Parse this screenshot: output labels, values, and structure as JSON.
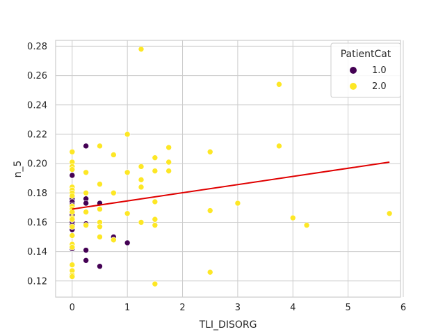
{
  "chart_data": {
    "type": "scatter",
    "title": "",
    "xlabel": "TLI_DISORG",
    "ylabel": "n_5",
    "xlim": [
      -0.3,
      5.95
    ],
    "ylim": [
      0.109,
      0.284
    ],
    "xticks": [
      0,
      1,
      2,
      3,
      4,
      5,
      6
    ],
    "yticks": [
      0.12,
      0.14,
      0.16,
      0.18,
      0.2,
      0.22,
      0.24,
      0.26,
      0.28
    ],
    "grid": true,
    "legend": {
      "title": "PatientCat",
      "position": "top-right"
    },
    "series": [
      {
        "name": "1.0",
        "color": "#440154",
        "points": [
          [
            0,
            0.192
          ],
          [
            0,
            0.176
          ],
          [
            0,
            0.174
          ],
          [
            0,
            0.172
          ],
          [
            0,
            0.168
          ],
          [
            0,
            0.165
          ],
          [
            0,
            0.16
          ],
          [
            0,
            0.158
          ],
          [
            0,
            0.155
          ],
          [
            0,
            0.142
          ],
          [
            0.25,
            0.212
          ],
          [
            0.25,
            0.176
          ],
          [
            0.25,
            0.173
          ],
          [
            0.25,
            0.159
          ],
          [
            0.25,
            0.141
          ],
          [
            0.25,
            0.134
          ],
          [
            0.5,
            0.173
          ],
          [
            0.5,
            0.13
          ],
          [
            0.75,
            0.15
          ],
          [
            1.0,
            0.146
          ]
        ]
      },
      {
        "name": "2.0",
        "color": "#fde725",
        "points": [
          [
            0,
            0.208
          ],
          [
            0,
            0.201
          ],
          [
            0,
            0.198
          ],
          [
            0,
            0.196
          ],
          [
            0,
            0.184
          ],
          [
            0,
            0.182
          ],
          [
            0,
            0.18
          ],
          [
            0,
            0.178
          ],
          [
            0,
            0.171
          ],
          [
            0,
            0.169
          ],
          [
            0,
            0.167
          ],
          [
            0,
            0.163
          ],
          [
            0,
            0.162
          ],
          [
            0,
            0.157
          ],
          [
            0,
            0.151
          ],
          [
            0,
            0.145
          ],
          [
            0,
            0.143
          ],
          [
            0,
            0.131
          ],
          [
            0,
            0.127
          ],
          [
            0,
            0.124
          ],
          [
            0,
            0.123
          ],
          [
            0.25,
            0.194
          ],
          [
            0.25,
            0.18
          ],
          [
            0.25,
            0.167
          ],
          [
            0.25,
            0.158
          ],
          [
            0.5,
            0.212
          ],
          [
            0.5,
            0.186
          ],
          [
            0.5,
            0.169
          ],
          [
            0.5,
            0.16
          ],
          [
            0.5,
            0.157
          ],
          [
            0.5,
            0.15
          ],
          [
            0.75,
            0.206
          ],
          [
            0.75,
            0.18
          ],
          [
            0.75,
            0.148
          ],
          [
            1.0,
            0.22
          ],
          [
            1.0,
            0.194
          ],
          [
            1.0,
            0.166
          ],
          [
            1.25,
            0.278
          ],
          [
            1.25,
            0.198
          ],
          [
            1.25,
            0.189
          ],
          [
            1.25,
            0.184
          ],
          [
            1.25,
            0.16
          ],
          [
            1.5,
            0.204
          ],
          [
            1.5,
            0.195
          ],
          [
            1.5,
            0.174
          ],
          [
            1.5,
            0.162
          ],
          [
            1.5,
            0.158
          ],
          [
            1.5,
            0.118
          ],
          [
            1.75,
            0.211
          ],
          [
            1.75,
            0.201
          ],
          [
            1.75,
            0.195
          ],
          [
            2.5,
            0.208
          ],
          [
            2.5,
            0.168
          ],
          [
            2.5,
            0.126
          ],
          [
            3.0,
            0.173
          ],
          [
            3.75,
            0.254
          ],
          [
            3.75,
            0.212
          ],
          [
            4.0,
            0.163
          ],
          [
            4.25,
            0.158
          ],
          [
            5.75,
            0.166
          ]
        ]
      }
    ],
    "trendline": {
      "color": "#e00000",
      "x": [
        0,
        5.75
      ],
      "y": [
        0.169,
        0.201
      ]
    }
  }
}
